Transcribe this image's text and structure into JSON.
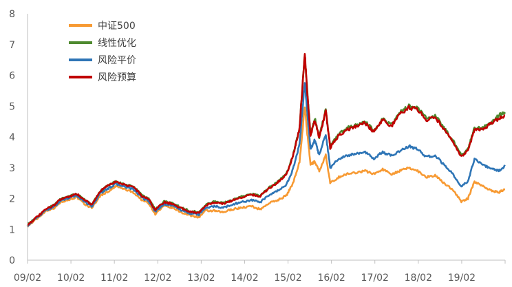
{
  "chart_data": {
    "type": "line",
    "title": "",
    "xlabel": "",
    "ylabel": "",
    "ylim": [
      0,
      8
    ],
    "yticks": [
      "0",
      "1",
      "2",
      "3",
      "4",
      "5",
      "6",
      "7",
      "8"
    ],
    "xticks": [
      "09/02",
      "10/02",
      "11/02",
      "12/02",
      "13/02",
      "14/02",
      "15/02",
      "16/02",
      "17/02",
      "18/02",
      "19/02"
    ],
    "x_range": [
      2009.08,
      2020.0
    ],
    "grid": false,
    "legend_position": "top-left",
    "series": [
      {
        "name": "中证500",
        "color": "#F79A33",
        "points": [
          [
            2009.08,
            1.1
          ],
          [
            2009.3,
            1.35
          ],
          [
            2009.5,
            1.6
          ],
          [
            2009.7,
            1.7
          ],
          [
            2009.85,
            1.9
          ],
          [
            2010.0,
            1.95
          ],
          [
            2010.2,
            2.05
          ],
          [
            2010.4,
            1.8
          ],
          [
            2010.55,
            1.7
          ],
          [
            2010.75,
            2.1
          ],
          [
            2010.95,
            2.25
          ],
          [
            2011.1,
            2.4
          ],
          [
            2011.3,
            2.3
          ],
          [
            2011.5,
            2.2
          ],
          [
            2011.7,
            1.95
          ],
          [
            2011.85,
            1.85
          ],
          [
            2012.0,
            1.5
          ],
          [
            2012.2,
            1.75
          ],
          [
            2012.4,
            1.7
          ],
          [
            2012.6,
            1.55
          ],
          [
            2012.8,
            1.45
          ],
          [
            2013.0,
            1.4
          ],
          [
            2013.15,
            1.6
          ],
          [
            2013.35,
            1.6
          ],
          [
            2013.55,
            1.55
          ],
          [
            2013.75,
            1.65
          ],
          [
            2013.95,
            1.7
          ],
          [
            2014.2,
            1.75
          ],
          [
            2014.4,
            1.65
          ],
          [
            2014.6,
            1.85
          ],
          [
            2014.8,
            1.95
          ],
          [
            2015.0,
            2.1
          ],
          [
            2015.15,
            2.5
          ],
          [
            2015.3,
            3.2
          ],
          [
            2015.42,
            5.0
          ],
          [
            2015.47,
            4.2
          ],
          [
            2015.55,
            3.1
          ],
          [
            2015.65,
            3.2
          ],
          [
            2015.75,
            2.9
          ],
          [
            2015.9,
            3.4
          ],
          [
            2016.0,
            2.5
          ],
          [
            2016.2,
            2.7
          ],
          [
            2016.4,
            2.8
          ],
          [
            2016.6,
            2.85
          ],
          [
            2016.8,
            2.9
          ],
          [
            2017.0,
            2.8
          ],
          [
            2017.2,
            2.95
          ],
          [
            2017.4,
            2.8
          ],
          [
            2017.6,
            2.9
          ],
          [
            2017.8,
            3.0
          ],
          [
            2018.0,
            2.9
          ],
          [
            2018.2,
            2.7
          ],
          [
            2018.4,
            2.75
          ],
          [
            2018.6,
            2.5
          ],
          [
            2018.8,
            2.3
          ],
          [
            2019.0,
            1.9
          ],
          [
            2019.15,
            2.0
          ],
          [
            2019.3,
            2.55
          ],
          [
            2019.5,
            2.4
          ],
          [
            2019.7,
            2.25
          ],
          [
            2019.85,
            2.2
          ],
          [
            2020.0,
            2.3
          ]
        ]
      },
      {
        "name": "线性优化",
        "color": "#4E8A2F",
        "points": [
          [
            2009.08,
            1.15
          ],
          [
            2009.3,
            1.4
          ],
          [
            2009.5,
            1.65
          ],
          [
            2009.7,
            1.8
          ],
          [
            2009.85,
            2.0
          ],
          [
            2010.0,
            2.05
          ],
          [
            2010.2,
            2.15
          ],
          [
            2010.4,
            1.95
          ],
          [
            2010.55,
            1.8
          ],
          [
            2010.75,
            2.25
          ],
          [
            2010.95,
            2.45
          ],
          [
            2011.1,
            2.55
          ],
          [
            2011.3,
            2.45
          ],
          [
            2011.5,
            2.4
          ],
          [
            2011.7,
            2.1
          ],
          [
            2011.85,
            2.0
          ],
          [
            2012.0,
            1.65
          ],
          [
            2012.2,
            1.9
          ],
          [
            2012.4,
            1.85
          ],
          [
            2012.6,
            1.7
          ],
          [
            2012.8,
            1.6
          ],
          [
            2013.0,
            1.55
          ],
          [
            2013.15,
            1.8
          ],
          [
            2013.35,
            1.9
          ],
          [
            2013.55,
            1.85
          ],
          [
            2013.75,
            1.95
          ],
          [
            2013.95,
            2.05
          ],
          [
            2014.2,
            2.15
          ],
          [
            2014.4,
            2.1
          ],
          [
            2014.6,
            2.35
          ],
          [
            2014.8,
            2.55
          ],
          [
            2015.0,
            2.8
          ],
          [
            2015.15,
            3.4
          ],
          [
            2015.3,
            4.3
          ],
          [
            2015.42,
            6.7
          ],
          [
            2015.47,
            5.6
          ],
          [
            2015.55,
            4.1
          ],
          [
            2015.65,
            4.6
          ],
          [
            2015.75,
            4.0
          ],
          [
            2015.9,
            4.9
          ],
          [
            2016.0,
            3.7
          ],
          [
            2016.2,
            4.1
          ],
          [
            2016.4,
            4.3
          ],
          [
            2016.6,
            4.4
          ],
          [
            2016.8,
            4.5
          ],
          [
            2017.0,
            4.2
          ],
          [
            2017.2,
            4.6
          ],
          [
            2017.4,
            4.4
          ],
          [
            2017.6,
            4.8
          ],
          [
            2017.8,
            5.0
          ],
          [
            2018.0,
            4.95
          ],
          [
            2018.2,
            4.6
          ],
          [
            2018.4,
            4.7
          ],
          [
            2018.6,
            4.3
          ],
          [
            2018.8,
            3.9
          ],
          [
            2019.0,
            3.4
          ],
          [
            2019.15,
            3.6
          ],
          [
            2019.3,
            4.3
          ],
          [
            2019.5,
            4.3
          ],
          [
            2019.7,
            4.5
          ],
          [
            2019.85,
            4.7
          ],
          [
            2020.0,
            4.8
          ]
        ]
      },
      {
        "name": "风险平价",
        "color": "#2E75B6",
        "points": [
          [
            2009.08,
            1.12
          ],
          [
            2009.3,
            1.38
          ],
          [
            2009.5,
            1.62
          ],
          [
            2009.7,
            1.75
          ],
          [
            2009.85,
            1.95
          ],
          [
            2010.0,
            2.0
          ],
          [
            2010.2,
            2.1
          ],
          [
            2010.4,
            1.88
          ],
          [
            2010.55,
            1.75
          ],
          [
            2010.75,
            2.18
          ],
          [
            2010.95,
            2.35
          ],
          [
            2011.1,
            2.48
          ],
          [
            2011.3,
            2.38
          ],
          [
            2011.5,
            2.3
          ],
          [
            2011.7,
            2.02
          ],
          [
            2011.85,
            1.92
          ],
          [
            2012.0,
            1.58
          ],
          [
            2012.2,
            1.82
          ],
          [
            2012.4,
            1.78
          ],
          [
            2012.6,
            1.62
          ],
          [
            2012.8,
            1.52
          ],
          [
            2013.0,
            1.48
          ],
          [
            2013.15,
            1.7
          ],
          [
            2013.35,
            1.75
          ],
          [
            2013.55,
            1.7
          ],
          [
            2013.75,
            1.8
          ],
          [
            2013.95,
            1.88
          ],
          [
            2014.2,
            1.95
          ],
          [
            2014.4,
            1.88
          ],
          [
            2014.6,
            2.1
          ],
          [
            2014.8,
            2.25
          ],
          [
            2015.0,
            2.45
          ],
          [
            2015.15,
            2.95
          ],
          [
            2015.3,
            3.75
          ],
          [
            2015.42,
            5.8
          ],
          [
            2015.47,
            4.9
          ],
          [
            2015.55,
            3.6
          ],
          [
            2015.65,
            3.9
          ],
          [
            2015.75,
            3.4
          ],
          [
            2015.9,
            4.1
          ],
          [
            2016.0,
            3.0
          ],
          [
            2016.2,
            3.3
          ],
          [
            2016.4,
            3.4
          ],
          [
            2016.6,
            3.45
          ],
          [
            2016.8,
            3.5
          ],
          [
            2017.0,
            3.3
          ],
          [
            2017.2,
            3.5
          ],
          [
            2017.4,
            3.4
          ],
          [
            2017.6,
            3.55
          ],
          [
            2017.8,
            3.7
          ],
          [
            2018.0,
            3.6
          ],
          [
            2018.2,
            3.35
          ],
          [
            2018.4,
            3.4
          ],
          [
            2018.6,
            3.1
          ],
          [
            2018.8,
            2.8
          ],
          [
            2019.0,
            2.4
          ],
          [
            2019.15,
            2.55
          ],
          [
            2019.3,
            3.3
          ],
          [
            2019.5,
            3.1
          ],
          [
            2019.7,
            2.95
          ],
          [
            2019.85,
            2.9
          ],
          [
            2020.0,
            3.05
          ]
        ]
      },
      {
        "name": "风险预算",
        "color": "#C00000",
        "points": [
          [
            2009.08,
            1.15
          ],
          [
            2009.3,
            1.4
          ],
          [
            2009.5,
            1.65
          ],
          [
            2009.7,
            1.8
          ],
          [
            2009.85,
            2.0
          ],
          [
            2010.0,
            2.05
          ],
          [
            2010.2,
            2.15
          ],
          [
            2010.4,
            1.95
          ],
          [
            2010.55,
            1.8
          ],
          [
            2010.75,
            2.25
          ],
          [
            2010.95,
            2.45
          ],
          [
            2011.1,
            2.55
          ],
          [
            2011.3,
            2.45
          ],
          [
            2011.5,
            2.38
          ],
          [
            2011.7,
            2.08
          ],
          [
            2011.85,
            1.98
          ],
          [
            2012.0,
            1.63
          ],
          [
            2012.2,
            1.88
          ],
          [
            2012.4,
            1.83
          ],
          [
            2012.6,
            1.68
          ],
          [
            2012.8,
            1.58
          ],
          [
            2013.0,
            1.53
          ],
          [
            2013.15,
            1.78
          ],
          [
            2013.35,
            1.88
          ],
          [
            2013.55,
            1.83
          ],
          [
            2013.75,
            1.93
          ],
          [
            2013.95,
            2.03
          ],
          [
            2014.2,
            2.13
          ],
          [
            2014.4,
            2.08
          ],
          [
            2014.6,
            2.33
          ],
          [
            2014.8,
            2.53
          ],
          [
            2015.0,
            2.78
          ],
          [
            2015.15,
            3.38
          ],
          [
            2015.3,
            4.28
          ],
          [
            2015.42,
            6.75
          ],
          [
            2015.47,
            5.55
          ],
          [
            2015.55,
            4.05
          ],
          [
            2015.65,
            4.55
          ],
          [
            2015.75,
            3.95
          ],
          [
            2015.9,
            4.85
          ],
          [
            2016.0,
            3.65
          ],
          [
            2016.2,
            4.05
          ],
          [
            2016.4,
            4.25
          ],
          [
            2016.6,
            4.35
          ],
          [
            2016.8,
            4.45
          ],
          [
            2017.0,
            4.15
          ],
          [
            2017.2,
            4.55
          ],
          [
            2017.4,
            4.35
          ],
          [
            2017.6,
            4.75
          ],
          [
            2017.8,
            4.95
          ],
          [
            2018.0,
            4.9
          ],
          [
            2018.2,
            4.55
          ],
          [
            2018.4,
            4.65
          ],
          [
            2018.6,
            4.25
          ],
          [
            2018.8,
            3.85
          ],
          [
            2019.0,
            3.35
          ],
          [
            2019.15,
            3.55
          ],
          [
            2019.3,
            4.25
          ],
          [
            2019.5,
            4.25
          ],
          [
            2019.7,
            4.45
          ],
          [
            2019.85,
            4.6
          ],
          [
            2020.0,
            4.7
          ]
        ]
      }
    ]
  }
}
